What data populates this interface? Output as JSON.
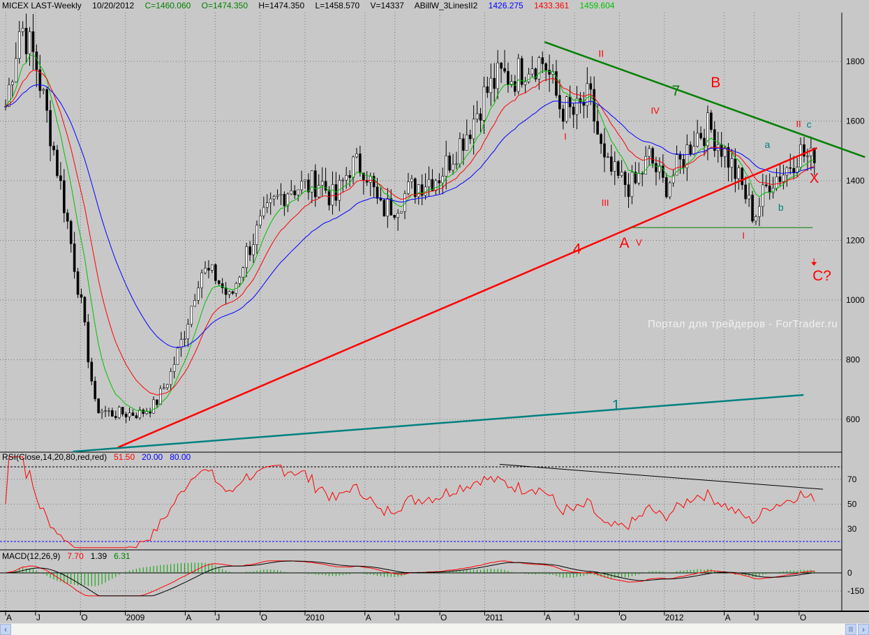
{
  "header": {
    "symbol": "MICEX LAST-Weekly",
    "date": "10/20/2012",
    "close": "C=1460.060",
    "open": "O=1474.350",
    "high": "H=1474.350",
    "low": "L=1458.570",
    "volume": "V=14337",
    "indicator": "ABillW_3LinesII2",
    "ind_blue": "1426.275",
    "ind_red": "1433.361",
    "ind_green": "1459.604"
  },
  "rsi_header": {
    "label": "RSI(Close,14,20,80,red,red)",
    "value": "51.50",
    "low": "20.00",
    "high": "80.00"
  },
  "macd_header": {
    "label": "MACD(12,26,9)",
    "macd": "7.70",
    "signal": "1.39",
    "hist": "6.31"
  },
  "watermark": "Портал для трейдеров - ForTrader.ru",
  "colors": {
    "background": "#c8c8c8",
    "green": "#00c000",
    "red": "#ff0000",
    "blue": "#0000ff",
    "teal": "#008080",
    "trend_green": "#008000"
  },
  "scrollbar": {
    "left": "‹",
    "right": "›",
    "thumb": "|||"
  },
  "chart_data": {
    "type": "candlestick",
    "title": "MICEX LAST-Weekly",
    "x_unit": "month index (0 = Apr 2008)",
    "price_axis": {
      "ticks": [
        600,
        800,
        1000,
        1200,
        1400,
        1600,
        1800
      ],
      "range": [
        470,
        1970
      ]
    },
    "time_axis": {
      "labels": [
        "A",
        "J",
        "O",
        "2009",
        "A",
        "J",
        "O",
        "2010",
        "A",
        "J",
        "O",
        "2011",
        "A",
        "J",
        "O",
        "2012",
        "A",
        "J",
        "O"
      ],
      "months": [
        0,
        2,
        5,
        8,
        12,
        14,
        17,
        20,
        24,
        26,
        29,
        32,
        36,
        38,
        41,
        44,
        48,
        50,
        53
      ]
    },
    "monthly_closes": [
      1650,
      1930,
      1800,
      1560,
      1300,
      1000,
      640,
      620,
      620,
      620,
      650,
      750,
      900,
      1100,
      1080,
      1000,
      1150,
      1250,
      1330,
      1380,
      1380,
      1400,
      1330,
      1450,
      1450,
      1300,
      1320,
      1370,
      1400,
      1420,
      1500,
      1580,
      1690,
      1750,
      1750,
      1800,
      1800,
      1650,
      1620,
      1680,
      1450,
      1400,
      1380,
      1480,
      1380,
      1450,
      1550,
      1580,
      1500,
      1400,
      1280,
      1400,
      1430,
      1500,
      1460
    ],
    "moving_averages": [
      {
        "name": "green",
        "period": 8
      },
      {
        "name": "red",
        "period": 16
      },
      {
        "name": "blue",
        "period": 34
      }
    ],
    "trendlines": [
      {
        "name": "resistance-7",
        "color": "#008000",
        "from": [
          36,
          1865
        ],
        "to": [
          57.4,
          1479
        ]
      },
      {
        "name": "support-4",
        "color": "#ff0000",
        "from": [
          7.5,
          506
        ],
        "to": [
          54.2,
          1510
        ]
      },
      {
        "name": "support-1",
        "color": "#008080",
        "from": [
          4.5,
          492
        ],
        "to": [
          53.3,
          682
        ]
      },
      {
        "name": "horizontal-low",
        "color": "#008000",
        "from": [
          41.8,
          1243
        ],
        "to": [
          53.9,
          1243
        ]
      }
    ],
    "annotations": [
      {
        "text": "II",
        "m": 39.6,
        "p": 1815,
        "color": "#ff0000",
        "size": 14
      },
      {
        "text": "I",
        "m": 37.3,
        "p": 1538,
        "color": "#ff0000",
        "size": 13
      },
      {
        "text": "III",
        "m": 39.8,
        "p": 1316,
        "color": "#ff0000",
        "size": 13
      },
      {
        "text": "IV",
        "m": 43.1,
        "p": 1625,
        "color": "#ff0000",
        "size": 13
      },
      {
        "text": "V",
        "m": 42.1,
        "p": 1182,
        "color": "#ff0000",
        "size": 13
      },
      {
        "text": "A",
        "m": 41.0,
        "p": 1175,
        "color": "#ff0000",
        "size": 21
      },
      {
        "text": "B",
        "m": 47.1,
        "p": 1713,
        "color": "#ff0000",
        "size": 21
      },
      {
        "text": "7",
        "m": 44.5,
        "p": 1685,
        "color": "#008000",
        "size": 21
      },
      {
        "text": "4",
        "m": 37.9,
        "p": 1155,
        "color": "#ff0000",
        "size": 21
      },
      {
        "text": "1",
        "m": 40.5,
        "p": 632,
        "color": "#008080",
        "size": 21
      },
      {
        "text": "I",
        "m": 49.2,
        "p": 1206,
        "color": "#ff0000",
        "size": 13
      },
      {
        "text": "II",
        "m": 52.8,
        "p": 1580,
        "color": "#ff0000",
        "size": 13
      },
      {
        "text": "c",
        "m": 53.5,
        "p": 1578,
        "color": "#008080",
        "size": 14
      },
      {
        "text": "a",
        "m": 50.7,
        "p": 1510,
        "color": "#008080",
        "size": 14
      },
      {
        "text": "b",
        "m": 51.6,
        "p": 1300,
        "color": "#008080",
        "size": 14
      },
      {
        "text": "X",
        "m": 53.7,
        "p": 1393,
        "color": "#ff0000",
        "size": 20
      },
      {
        "text": "C?",
        "m": 53.9,
        "p": 1065,
        "color": "#ff0000",
        "size": 21
      }
    ],
    "rsi": {
      "period": 14,
      "levels": [
        20,
        80
      ],
      "ticks": [
        30,
        50,
        70
      ],
      "trendline": {
        "from": [
          33,
          82
        ],
        "to": [
          54.6,
          62
        ]
      }
    },
    "macd": {
      "fast": 12,
      "slow": 26,
      "signal": 9,
      "ticks": [
        0,
        -150
      ]
    }
  }
}
